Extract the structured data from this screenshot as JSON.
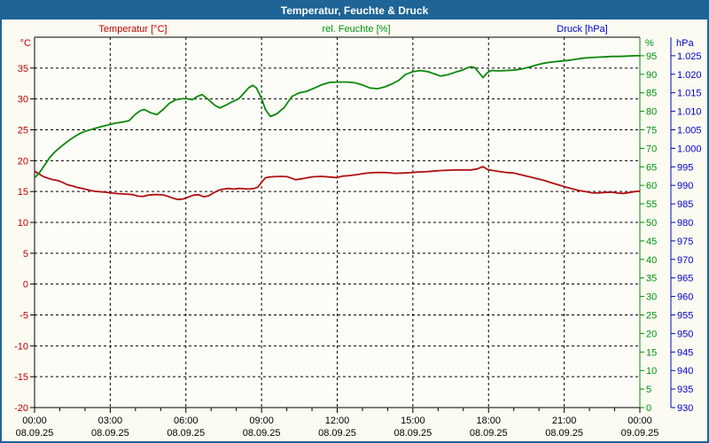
{
  "window": {
    "title": "Temperatur, Feuchte & Druck"
  },
  "header": {
    "temperature_label": "Temperatur [°C]",
    "humidity_label": "rel. Feuchte [%]",
    "pressure_label": "Druck [hPa]"
  },
  "colors": {
    "titlebar_bg": "#1e6496",
    "frame_border": "#1e6496",
    "background": "#fbfbf2",
    "plot_bg": "#fdfdf7",
    "grid": "#000000",
    "temp_text": "#c00000",
    "temp_line": "#b01010",
    "hum_text": "#009310",
    "hum_line": "#0b880b",
    "press_text": "#0000cc",
    "press_line": "#0000bb"
  },
  "chart_data": {
    "type": "line",
    "title": "Temperatur, Feuchte & Druck",
    "grid": true,
    "legend_position": "top",
    "x_axis": {
      "range_hours": [
        0,
        24
      ],
      "minor_tick_hours": 1,
      "major_tick_hours": 3,
      "ticks": [
        {
          "h": 0,
          "time": "00:00",
          "date": "08.09.25"
        },
        {
          "h": 3,
          "time": "03:00",
          "date": "08.09.25"
        },
        {
          "h": 6,
          "time": "06:00",
          "date": "08.09.25"
        },
        {
          "h": 9,
          "time": "09:00",
          "date": "08.09.25"
        },
        {
          "h": 12,
          "time": "12:00",
          "date": "08.09.25"
        },
        {
          "h": 15,
          "time": "15:00",
          "date": "08.09.25"
        },
        {
          "h": 18,
          "time": "18:00",
          "date": "08.09.25"
        },
        {
          "h": 21,
          "time": "21:00",
          "date": "08.09.25"
        },
        {
          "h": 24,
          "time": "00:00",
          "date": "09.09.25"
        }
      ]
    },
    "y_axes": {
      "temperature": {
        "unit": "°C",
        "min": -20,
        "max": 40,
        "tick_step": 5,
        "ticks": [
          {
            "value": 35,
            "label": "35"
          },
          {
            "value": 30,
            "label": "30"
          },
          {
            "value": 25,
            "label": "25"
          },
          {
            "value": 20,
            "label": "20"
          },
          {
            "value": 15,
            "label": "15"
          },
          {
            "value": 10,
            "label": "10"
          },
          {
            "value": 5,
            "label": "5"
          },
          {
            "value": 0,
            "label": "0"
          },
          {
            "value": -5,
            "label": "-5"
          },
          {
            "value": -10,
            "label": "-10"
          },
          {
            "value": -15,
            "label": "-15"
          },
          {
            "value": -20,
            "label": "-20"
          }
        ]
      },
      "humidity": {
        "unit": "%",
        "min": 0,
        "max": 100,
        "tick_step": 5,
        "ticks": [
          {
            "value": 95,
            "label": "95"
          },
          {
            "value": 90,
            "label": "90"
          },
          {
            "value": 85,
            "label": "85"
          },
          {
            "value": 80,
            "label": "80"
          },
          {
            "value": 75,
            "label": "75"
          },
          {
            "value": 70,
            "label": "70"
          },
          {
            "value": 65,
            "label": "65"
          },
          {
            "value": 60,
            "label": "60"
          },
          {
            "value": 55,
            "label": "55"
          },
          {
            "value": 50,
            "label": "50"
          },
          {
            "value": 45,
            "label": "45"
          },
          {
            "value": 40,
            "label": "40"
          },
          {
            "value": 35,
            "label": "35"
          },
          {
            "value": 30,
            "label": "30"
          },
          {
            "value": 25,
            "label": "25"
          },
          {
            "value": 20,
            "label": "20"
          },
          {
            "value": 15,
            "label": "15"
          },
          {
            "value": 10,
            "label": "10"
          },
          {
            "value": 5,
            "label": "5"
          },
          {
            "value": 0,
            "label": "0"
          }
        ]
      },
      "pressure": {
        "unit": "hPa",
        "min": 930,
        "max": 1030,
        "tick_step": 5,
        "ticks": [
          {
            "value": 1025,
            "label": "1.025"
          },
          {
            "value": 1020,
            "label": "1.020"
          },
          {
            "value": 1015,
            "label": "1.015"
          },
          {
            "value": 1010,
            "label": "1.010"
          },
          {
            "value": 1005,
            "label": "1.005"
          },
          {
            "value": 1000,
            "label": "1.000"
          },
          {
            "value": 995,
            "label": "995"
          },
          {
            "value": 990,
            "label": "990"
          },
          {
            "value": 985,
            "label": "985"
          },
          {
            "value": 980,
            "label": "980"
          },
          {
            "value": 975,
            "label": "975"
          },
          {
            "value": 970,
            "label": "970"
          },
          {
            "value": 965,
            "label": "965"
          },
          {
            "value": 960,
            "label": "960"
          },
          {
            "value": 955,
            "label": "955"
          },
          {
            "value": 950,
            "label": "950"
          },
          {
            "value": 945,
            "label": "945"
          },
          {
            "value": 940,
            "label": "940"
          },
          {
            "value": 935,
            "label": "935"
          },
          {
            "value": 930,
            "label": "930"
          }
        ]
      }
    },
    "series": [
      {
        "name": "Temperatur",
        "unit": "°C",
        "axis": "temperature",
        "color_key": "temp_line",
        "points": [
          [
            0,
            18.3
          ],
          [
            0.2,
            17.8
          ],
          [
            0.35,
            17.4
          ],
          [
            0.5,
            17.2
          ],
          [
            0.7,
            16.95
          ],
          [
            0.9,
            16.8
          ],
          [
            1.1,
            16.5
          ],
          [
            1.3,
            16.1
          ],
          [
            1.5,
            15.9
          ],
          [
            1.7,
            15.65
          ],
          [
            1.9,
            15.5
          ],
          [
            2.1,
            15.3
          ],
          [
            2.3,
            15.1
          ],
          [
            2.5,
            15.0
          ],
          [
            2.8,
            14.9
          ],
          [
            3.0,
            14.8
          ],
          [
            3.3,
            14.65
          ],
          [
            3.6,
            14.6
          ],
          [
            3.9,
            14.5
          ],
          [
            4.1,
            14.25
          ],
          [
            4.3,
            14.2
          ],
          [
            4.5,
            14.4
          ],
          [
            4.7,
            14.5
          ],
          [
            4.9,
            14.5
          ],
          [
            5.1,
            14.45
          ],
          [
            5.3,
            14.2
          ],
          [
            5.5,
            13.9
          ],
          [
            5.7,
            13.7
          ],
          [
            5.9,
            13.8
          ],
          [
            6.1,
            14.1
          ],
          [
            6.3,
            14.4
          ],
          [
            6.5,
            14.5
          ],
          [
            6.7,
            14.15
          ],
          [
            6.9,
            14.3
          ],
          [
            7.1,
            14.8
          ],
          [
            7.3,
            15.2
          ],
          [
            7.5,
            15.4
          ],
          [
            7.7,
            15.5
          ],
          [
            7.9,
            15.4
          ],
          [
            8.1,
            15.5
          ],
          [
            8.3,
            15.45
          ],
          [
            8.5,
            15.4
          ],
          [
            8.7,
            15.5
          ],
          [
            8.85,
            15.7
          ],
          [
            9.0,
            16.5
          ],
          [
            9.15,
            17.2
          ],
          [
            9.3,
            17.35
          ],
          [
            9.5,
            17.4
          ],
          [
            9.8,
            17.45
          ],
          [
            10.0,
            17.4
          ],
          [
            10.2,
            17.15
          ],
          [
            10.35,
            16.9
          ],
          [
            10.5,
            17.0
          ],
          [
            10.7,
            17.15
          ],
          [
            10.9,
            17.3
          ],
          [
            11.1,
            17.4
          ],
          [
            11.4,
            17.45
          ],
          [
            11.7,
            17.35
          ],
          [
            12.0,
            17.25
          ],
          [
            12.2,
            17.5
          ],
          [
            12.5,
            17.6
          ],
          [
            12.8,
            17.75
          ],
          [
            13.1,
            17.95
          ],
          [
            13.4,
            18.05
          ],
          [
            13.7,
            18.1
          ],
          [
            14.0,
            18.05
          ],
          [
            14.3,
            17.95
          ],
          [
            14.6,
            18.0
          ],
          [
            14.9,
            18.05
          ],
          [
            15.2,
            18.15
          ],
          [
            15.5,
            18.2
          ],
          [
            15.8,
            18.3
          ],
          [
            16.1,
            18.4
          ],
          [
            16.4,
            18.45
          ],
          [
            16.7,
            18.5
          ],
          [
            17.0,
            18.5
          ],
          [
            17.3,
            18.5
          ],
          [
            17.55,
            18.65
          ],
          [
            17.78,
            19.05
          ],
          [
            17.95,
            18.6
          ],
          [
            18.1,
            18.45
          ],
          [
            18.4,
            18.25
          ],
          [
            18.7,
            18.1
          ],
          [
            19.0,
            18.0
          ],
          [
            19.3,
            17.7
          ],
          [
            19.6,
            17.4
          ],
          [
            19.9,
            17.1
          ],
          [
            20.2,
            16.8
          ],
          [
            20.5,
            16.4
          ],
          [
            20.8,
            16.05
          ],
          [
            21.0,
            15.8
          ],
          [
            21.3,
            15.45
          ],
          [
            21.6,
            15.15
          ],
          [
            21.9,
            14.95
          ],
          [
            22.1,
            14.8
          ],
          [
            22.35,
            14.75
          ],
          [
            22.6,
            14.85
          ],
          [
            22.9,
            14.9
          ],
          [
            23.1,
            14.75
          ],
          [
            23.35,
            14.7
          ],
          [
            23.6,
            14.85
          ],
          [
            23.8,
            15.0
          ],
          [
            24,
            15.05
          ]
        ]
      },
      {
        "name": "rel. Feuchte",
        "unit": "%",
        "axis": "humidity",
        "color_key": "hum_line",
        "points": [
          [
            0,
            62
          ],
          [
            0.2,
            63.5
          ],
          [
            0.4,
            65.5
          ],
          [
            0.6,
            67.5
          ],
          [
            0.8,
            69
          ],
          [
            1.0,
            70.2
          ],
          [
            1.2,
            71.3
          ],
          [
            1.4,
            72.3
          ],
          [
            1.6,
            73.2
          ],
          [
            1.8,
            74
          ],
          [
            2.0,
            74.6
          ],
          [
            2.3,
            75.2
          ],
          [
            2.6,
            75.8
          ],
          [
            2.9,
            76.3
          ],
          [
            3.2,
            76.8
          ],
          [
            3.5,
            77.1
          ],
          [
            3.75,
            77.5
          ],
          [
            4.0,
            79.2
          ],
          [
            4.2,
            80.2
          ],
          [
            4.35,
            80.5
          ],
          [
            4.6,
            79.6
          ],
          [
            4.85,
            79.1
          ],
          [
            5.1,
            80.5
          ],
          [
            5.35,
            82.2
          ],
          [
            5.6,
            83.1
          ],
          [
            5.85,
            83.4
          ],
          [
            6.05,
            83.4
          ],
          [
            6.25,
            83.1
          ],
          [
            6.45,
            84
          ],
          [
            6.65,
            84.5
          ],
          [
            6.9,
            83.1
          ],
          [
            7.15,
            81.6
          ],
          [
            7.35,
            80.9
          ],
          [
            7.6,
            81.7
          ],
          [
            7.85,
            82.6
          ],
          [
            8.1,
            83.4
          ],
          [
            8.3,
            84.9
          ],
          [
            8.5,
            86.4
          ],
          [
            8.65,
            87
          ],
          [
            8.8,
            86.3
          ],
          [
            9.0,
            83.5
          ],
          [
            9.15,
            80.5
          ],
          [
            9.35,
            78.6
          ],
          [
            9.6,
            79.3
          ],
          [
            9.9,
            81
          ],
          [
            10.2,
            84
          ],
          [
            10.5,
            85
          ],
          [
            10.8,
            85.4
          ],
          [
            11.1,
            86.3
          ],
          [
            11.4,
            87.2
          ],
          [
            11.7,
            87.8
          ],
          [
            12.0,
            87.9
          ],
          [
            12.4,
            87.9
          ],
          [
            12.7,
            87.7
          ],
          [
            13.0,
            87.1
          ],
          [
            13.3,
            86.3
          ],
          [
            13.6,
            86.1
          ],
          [
            13.9,
            86.6
          ],
          [
            14.2,
            87.5
          ],
          [
            14.45,
            88.4
          ],
          [
            14.7,
            89.9
          ],
          [
            15.0,
            90.7
          ],
          [
            15.3,
            91.0
          ],
          [
            15.6,
            90.7
          ],
          [
            15.85,
            90.1
          ],
          [
            16.1,
            89.5
          ],
          [
            16.4,
            89.9
          ],
          [
            16.7,
            90.6
          ],
          [
            16.95,
            91.1
          ],
          [
            17.15,
            91.7
          ],
          [
            17.3,
            92.0
          ],
          [
            17.45,
            91.8
          ],
          [
            17.6,
            90.6
          ],
          [
            17.78,
            89.1
          ],
          [
            17.95,
            90.4
          ],
          [
            18.1,
            91.0
          ],
          [
            18.4,
            90.9
          ],
          [
            18.7,
            91.0
          ],
          [
            19.0,
            91.1
          ],
          [
            19.3,
            91.4
          ],
          [
            19.6,
            91.9
          ],
          [
            19.9,
            92.5
          ],
          [
            20.2,
            93.0
          ],
          [
            20.5,
            93.3
          ],
          [
            20.8,
            93.5
          ],
          [
            21.1,
            93.7
          ],
          [
            21.4,
            94.0
          ],
          [
            21.7,
            94.3
          ],
          [
            22.0,
            94.5
          ],
          [
            22.3,
            94.6
          ],
          [
            22.6,
            94.7
          ],
          [
            22.9,
            94.8
          ],
          [
            23.2,
            94.8
          ],
          [
            23.5,
            94.9
          ],
          [
            23.8,
            95.0
          ],
          [
            24,
            95.0
          ]
        ]
      }
    ]
  }
}
